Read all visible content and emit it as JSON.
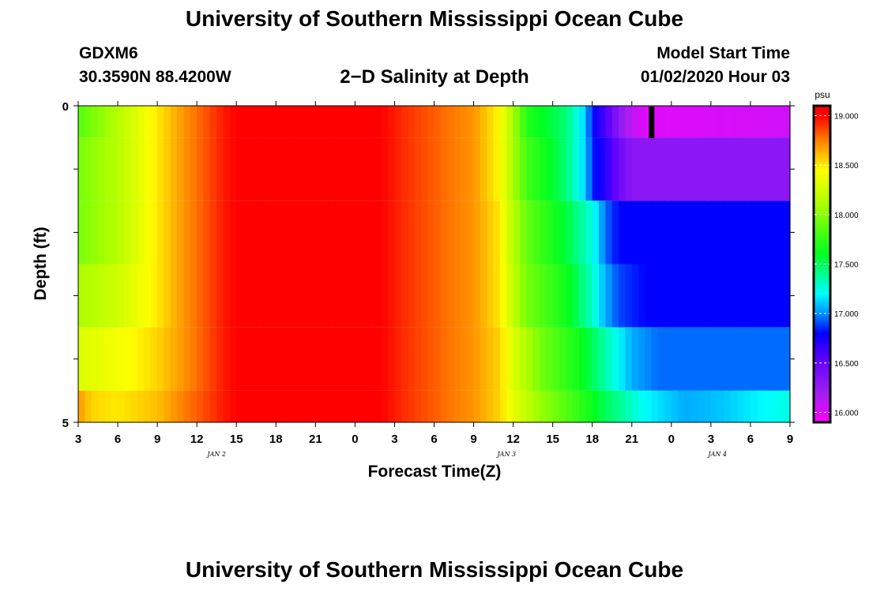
{
  "header": {
    "title": "University of Southern Mississippi Ocean Cube",
    "station_id": "GDXM6",
    "station_coords": "30.3590N 88.4200W",
    "plot_title": "2−D Salinity at Depth",
    "start_label": "Model Start Time",
    "start_value": "01/02/2020 Hour 03"
  },
  "footer": {
    "title": "University of Southern Mississippi Ocean Cube"
  },
  "chart_data": {
    "type": "heatmap",
    "title": "2−D Salinity at Depth",
    "xlabel": "Forecast Time(Z)",
    "ylabel": "Depth (ft)",
    "x_tick_labels": [
      "3",
      "6",
      "9",
      "12",
      "15",
      "18",
      "21",
      "0",
      "3",
      "6",
      "9",
      "12",
      "15",
      "18",
      "21",
      "0",
      "3",
      "6",
      "9"
    ],
    "x_date_labels": [
      {
        "label": "JAN 2",
        "at_hour_index": 10.5
      },
      {
        "label": "JAN 3",
        "at_hour_index": 32.5
      },
      {
        "label": "JAN 4",
        "at_hour_index": 48.5
      }
    ],
    "y_tick_labels": [
      "0",
      "5"
    ],
    "ylim": [
      0,
      5
    ],
    "x_hours": [
      0,
      54
    ],
    "colorbar": {
      "unit": "psu",
      "range": [
        15.9,
        19.1
      ],
      "ticks": [
        "16.000",
        "16.500",
        "17.000",
        "17.500",
        "18.000",
        "18.500",
        "19.000"
      ],
      "stops": [
        {
          "v": 15.9,
          "c": "#ff00ff"
        },
        {
          "v": 16.2,
          "c": "#a020f0"
        },
        {
          "v": 16.55,
          "c": "#5a00ff"
        },
        {
          "v": 16.8,
          "c": "#0000ff"
        },
        {
          "v": 17.0,
          "c": "#0090ff"
        },
        {
          "v": 17.2,
          "c": "#00ffff"
        },
        {
          "v": 17.6,
          "c": "#00ff20"
        },
        {
          "v": 18.1,
          "c": "#aaff00"
        },
        {
          "v": 18.45,
          "c": "#ffff00"
        },
        {
          "v": 18.75,
          "c": "#ff8000"
        },
        {
          "v": 19.0,
          "c": "#ff0000"
        }
      ]
    },
    "depth_layers": [
      {
        "from": 0.0,
        "to": 0.5,
        "profile": [
          [
            0,
            17.85
          ],
          [
            3,
            18.15
          ],
          [
            6,
            18.5
          ],
          [
            8,
            18.7
          ],
          [
            11,
            18.95
          ],
          [
            13,
            19.05
          ],
          [
            22,
            19.05
          ],
          [
            25,
            18.9
          ],
          [
            30,
            18.7
          ],
          [
            32,
            18.45
          ],
          [
            33,
            18.1
          ],
          [
            34,
            17.7
          ],
          [
            37,
            17.45
          ],
          [
            38.5,
            17.1
          ],
          [
            39,
            16.8
          ],
          [
            40,
            16.6
          ],
          [
            41,
            16.3
          ],
          [
            42,
            16.1
          ],
          [
            43,
            16.0
          ],
          [
            54,
            16.05
          ]
        ]
      },
      {
        "from": 0.5,
        "to": 1.5,
        "profile": [
          [
            0,
            17.95
          ],
          [
            3,
            18.15
          ],
          [
            6,
            18.5
          ],
          [
            8,
            18.7
          ],
          [
            11,
            18.95
          ],
          [
            13,
            19.05
          ],
          [
            22,
            19.05
          ],
          [
            25,
            18.9
          ],
          [
            30,
            18.7
          ],
          [
            32,
            18.45
          ],
          [
            33,
            18.1
          ],
          [
            34,
            17.8
          ],
          [
            37,
            17.45
          ],
          [
            38.5,
            17.1
          ],
          [
            39,
            16.85
          ],
          [
            40,
            16.7
          ],
          [
            41,
            16.45
          ],
          [
            42,
            16.3
          ],
          [
            54,
            16.3
          ]
        ]
      },
      {
        "from": 1.5,
        "to": 2.5,
        "profile": [
          [
            0,
            17.95
          ],
          [
            3,
            18.15
          ],
          [
            6,
            18.5
          ],
          [
            8,
            18.7
          ],
          [
            11,
            18.95
          ],
          [
            13,
            19.05
          ],
          [
            22,
            19.05
          ],
          [
            25,
            18.9
          ],
          [
            30,
            18.7
          ],
          [
            32,
            18.5
          ],
          [
            33,
            18.15
          ],
          [
            34,
            17.9
          ],
          [
            37,
            17.55
          ],
          [
            39,
            17.25
          ],
          [
            40,
            16.95
          ],
          [
            41,
            16.8
          ],
          [
            54,
            16.8
          ]
        ]
      },
      {
        "from": 2.5,
        "to": 3.5,
        "profile": [
          [
            0,
            18.1
          ],
          [
            3,
            18.25
          ],
          [
            6,
            18.5
          ],
          [
            8,
            18.7
          ],
          [
            11,
            18.95
          ],
          [
            13,
            19.05
          ],
          [
            22,
            19.05
          ],
          [
            25,
            18.9
          ],
          [
            30,
            18.7
          ],
          [
            32,
            18.5
          ],
          [
            33,
            18.2
          ],
          [
            34,
            17.95
          ],
          [
            37,
            17.65
          ],
          [
            39,
            17.3
          ],
          [
            40,
            17.05
          ],
          [
            41,
            16.9
          ],
          [
            43,
            16.8
          ],
          [
            54,
            16.8
          ]
        ]
      },
      {
        "from": 3.5,
        "to": 4.5,
        "profile": [
          [
            0,
            18.3
          ],
          [
            3,
            18.4
          ],
          [
            6,
            18.55
          ],
          [
            8,
            18.7
          ],
          [
            11,
            18.95
          ],
          [
            13,
            19.05
          ],
          [
            22,
            19.05
          ],
          [
            25,
            18.9
          ],
          [
            30,
            18.7
          ],
          [
            32,
            18.55
          ],
          [
            33,
            18.3
          ],
          [
            35,
            17.95
          ],
          [
            38,
            17.65
          ],
          [
            40,
            17.35
          ],
          [
            42,
            17.05
          ],
          [
            44,
            16.95
          ],
          [
            54,
            16.95
          ]
        ]
      },
      {
        "from": 4.5,
        "to": 5.0,
        "profile": [
          [
            0,
            18.7
          ],
          [
            1,
            18.55
          ],
          [
            3,
            18.5
          ],
          [
            6,
            18.6
          ],
          [
            8,
            18.75
          ],
          [
            11,
            18.95
          ],
          [
            13,
            19.05
          ],
          [
            22,
            19.05
          ],
          [
            25,
            18.9
          ],
          [
            30,
            18.7
          ],
          [
            32,
            18.55
          ],
          [
            33,
            18.35
          ],
          [
            35,
            18.05
          ],
          [
            38,
            17.75
          ],
          [
            40,
            17.5
          ],
          [
            43,
            17.2
          ],
          [
            46,
            17.05
          ],
          [
            49,
            17.1
          ],
          [
            52,
            17.2
          ],
          [
            54,
            17.25
          ]
        ]
      }
    ],
    "current_time_marker_hour": 43.5
  }
}
